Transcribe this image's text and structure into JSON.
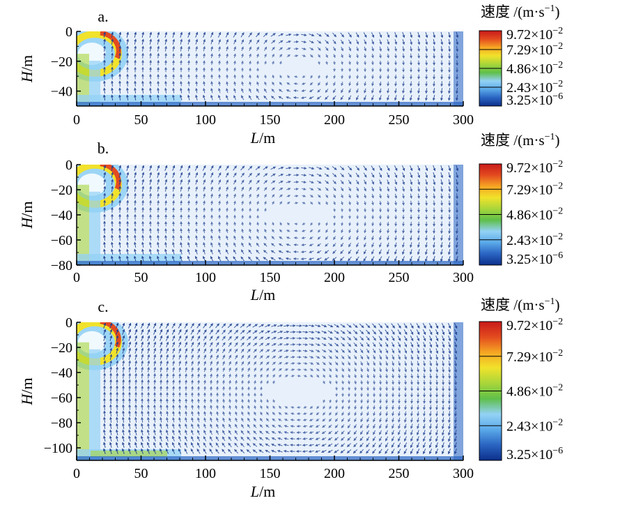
{
  "colors": {
    "low": "#1a4a9c",
    "mid_low": "#65b5ec",
    "mid": "#4fae3a",
    "mid_high": "#f7dc2a",
    "high": "#d8261f",
    "arrow": "#1f3f8f",
    "background_field": "#e8f1fb"
  },
  "colormap": [
    "#0c2f8a",
    "#2a64c2",
    "#5aa9e8",
    "#93d2f5",
    "#5fbf4a",
    "#a9d63a",
    "#f1e22b",
    "#f6a623",
    "#e34b1f",
    "#c81a1a"
  ],
  "chart_data": [
    {
      "type": "vector-field",
      "panel_label": "a.",
      "xlabel": "L",
      "xunit": "/m",
      "ylabel": "H",
      "yunit": "/m",
      "xlim": [
        0,
        300
      ],
      "ylim": [
        -50,
        0
      ],
      "x_ticks": [
        "0",
        "50",
        "100",
        "150",
        "200",
        "250",
        "300"
      ],
      "y_ticks": [
        "0",
        "−20",
        "−40"
      ],
      "y_tick_values": [
        0,
        -20,
        -40
      ],
      "colorbar": {
        "title": "速度 /(m·s",
        "title_exp": "−1",
        "title_close": ")",
        "labels": [
          {
            "mant": "9.72",
            "exp": "−2",
            "value": 0.0972
          },
          {
            "mant": "7.29",
            "exp": "−2",
            "value": 0.0729
          },
          {
            "mant": "4.86",
            "exp": "−2",
            "value": 0.0486
          },
          {
            "mant": "2.43",
            "exp": "−2",
            "value": 0.0243
          },
          {
            "mant": "3.25",
            "exp": "−6",
            "value": 3.25e-06
          }
        ]
      }
    },
    {
      "type": "vector-field",
      "panel_label": "b.",
      "xlabel": "L",
      "xunit": "/m",
      "ylabel": "H",
      "yunit": "/m",
      "xlim": [
        0,
        300
      ],
      "ylim": [
        -80,
        0
      ],
      "x_ticks": [
        "0",
        "50",
        "100",
        "150",
        "200",
        "250",
        "300"
      ],
      "y_ticks": [
        "0",
        "−20",
        "−40",
        "−60",
        "−80"
      ],
      "y_tick_values": [
        0,
        -20,
        -40,
        -60,
        -80
      ],
      "colorbar": {
        "title": "速度 /(m·s",
        "title_exp": "−1",
        "title_close": ")",
        "labels": [
          {
            "mant": "9.72",
            "exp": "−2",
            "value": 0.0972
          },
          {
            "mant": "7.29",
            "exp": "−2",
            "value": 0.0729
          },
          {
            "mant": "4.86",
            "exp": "−2",
            "value": 0.0486
          },
          {
            "mant": "2.43",
            "exp": "−2",
            "value": 0.0243
          },
          {
            "mant": "3.25",
            "exp": "−6",
            "value": 3.25e-06
          }
        ]
      }
    },
    {
      "type": "vector-field",
      "panel_label": "c.",
      "xlabel": "L",
      "xunit": "/m",
      "ylabel": "H",
      "yunit": "/m",
      "xlim": [
        0,
        300
      ],
      "ylim": [
        -110,
        0
      ],
      "x_ticks": [
        "0",
        "50",
        "100",
        "150",
        "200",
        "250",
        "300"
      ],
      "y_ticks": [
        "0",
        "−20",
        "−40",
        "−60",
        "−80",
        "−100"
      ],
      "y_tick_values": [
        0,
        -20,
        -40,
        -60,
        -80,
        -100
      ],
      "colorbar": {
        "title": "速度 /(m·s",
        "title_exp": "−1",
        "title_close": ")",
        "labels": [
          {
            "mant": "9.72",
            "exp": "−2",
            "value": 0.0972
          },
          {
            "mant": "7.29",
            "exp": "−2",
            "value": 0.0729
          },
          {
            "mant": "4.86",
            "exp": "−2",
            "value": 0.0486
          },
          {
            "mant": "2.43",
            "exp": "−2",
            "value": 0.0243
          },
          {
            "mant": "3.25",
            "exp": "−6",
            "value": 3.25e-06
          }
        ]
      }
    }
  ]
}
